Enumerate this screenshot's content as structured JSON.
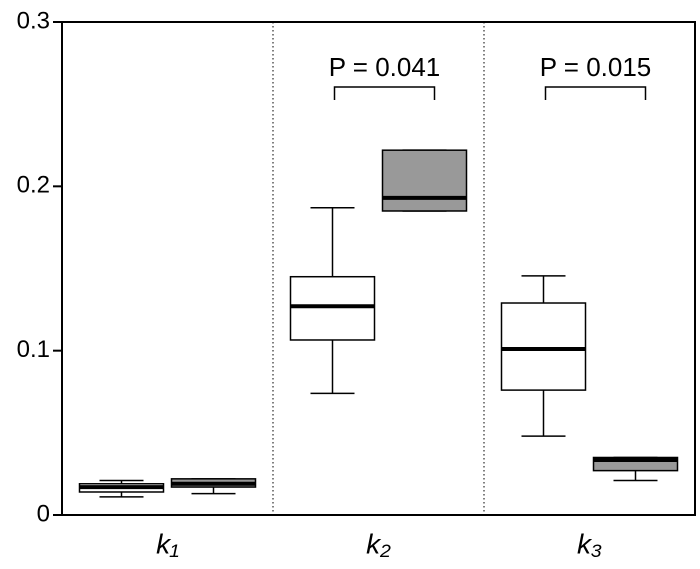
{
  "chart_data": {
    "type": "box",
    "categories": [
      "k₁",
      "k₂",
      "k₃"
    ],
    "ylim": [
      0,
      0.3
    ],
    "yticks": [
      0,
      0.1,
      0.2,
      0.3
    ],
    "series": [
      {
        "color": "#ffffff",
        "values": [
          {
            "min": 0.011,
            "q1": 0.014,
            "median": 0.017,
            "q3": 0.019,
            "max": 0.021
          },
          {
            "min": 0.074,
            "q1": 0.1065,
            "median": 0.127,
            "q3": 0.145,
            "max": 0.187
          },
          {
            "min": 0.048,
            "q1": 0.076,
            "median": 0.101,
            "q3": 0.129,
            "max": 0.1455
          }
        ]
      },
      {
        "color": "#999999",
        "values": [
          {
            "min": 0.013,
            "q1": 0.017,
            "median": 0.019,
            "q3": 0.022,
            "max": 0.022
          },
          {
            "min": 0.185,
            "q1": 0.185,
            "median": 0.193,
            "q3": 0.222,
            "max": 0.222
          },
          {
            "min": 0.021,
            "q1": 0.027,
            "median": 0.0335,
            "q3": 0.035,
            "max": 0.035
          }
        ]
      }
    ],
    "annotations": [
      null,
      "P = 0.041",
      "P = 0.015"
    ]
  }
}
